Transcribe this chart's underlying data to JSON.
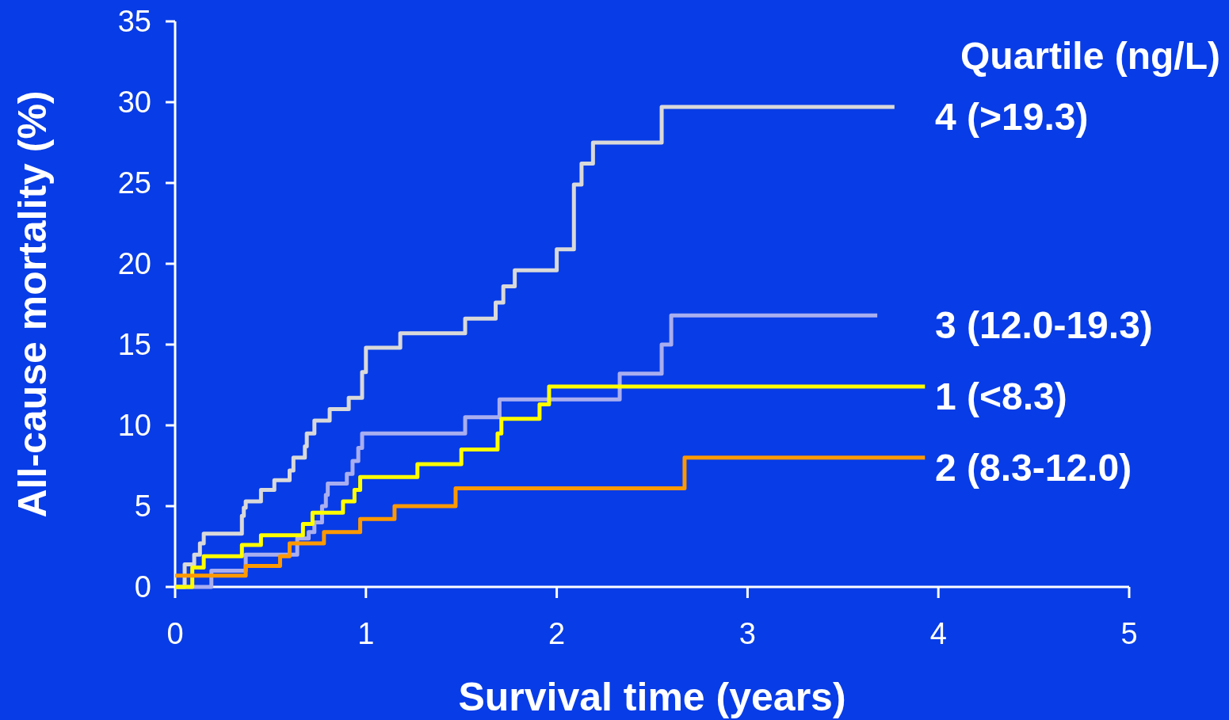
{
  "chart_data": {
    "type": "step",
    "xlabel": "Survival time (years)",
    "ylabel": "All-cause mortality (%)",
    "legend_title": "Quartile (ng/L)",
    "xlim": [
      0,
      5
    ],
    "ylim": [
      0,
      35
    ],
    "xticks": [
      0,
      1,
      2,
      3,
      4,
      5
    ],
    "yticks": [
      0,
      5,
      10,
      15,
      20,
      25,
      30,
      35
    ],
    "grid": false,
    "series": [
      {
        "name": "4 (>19.3)",
        "color": "#d9d9d9",
        "x": [
          0,
          0.05,
          0.1,
          0.13,
          0.15,
          0.35,
          0.36,
          0.37,
          0.45,
          0.52,
          0.6,
          0.62,
          0.68,
          0.69,
          0.73,
          0.81,
          0.91,
          0.98,
          1.0,
          1.18,
          1.52,
          1.68,
          1.72,
          1.78,
          2.0,
          2.09,
          2.13,
          2.19,
          2.55,
          3.77
        ],
        "values": [
          0,
          1.4,
          2,
          2.7,
          3.3,
          4.4,
          4.9,
          5.3,
          6,
          6.6,
          7.2,
          8,
          8.7,
          9.5,
          10.3,
          11,
          11.7,
          13.3,
          14.8,
          15.7,
          16.6,
          17.6,
          18.6,
          19.6,
          20.9,
          24.9,
          26.2,
          27.5,
          29.7,
          29.7
        ]
      },
      {
        "name": "3 (12.0-19.3)",
        "color": "#a9aef0",
        "x": [
          0,
          0.19,
          0.37,
          0.64,
          0.7,
          0.73,
          0.77,
          0.79,
          0.8,
          0.9,
          0.93,
          0.96,
          0.98,
          1.52,
          1.7,
          2.33,
          2.55,
          2.6,
          3.68
        ],
        "values": [
          0,
          1,
          2,
          3,
          3.4,
          4,
          5,
          5.7,
          6.4,
          7,
          7.8,
          8.6,
          9.5,
          10.5,
          11.6,
          13.2,
          15,
          16.8,
          16.8
        ]
      },
      {
        "name": "1 (<8.3)",
        "color": "#ffff00",
        "x": [
          0,
          0.09,
          0.15,
          0.35,
          0.45,
          0.67,
          0.72,
          0.88,
          0.94,
          0.97,
          1.27,
          1.5,
          1.69,
          1.71,
          1.91,
          1.96,
          3.93
        ],
        "values": [
          0,
          1.2,
          1.9,
          2.6,
          3.2,
          3.9,
          4.6,
          5.3,
          6,
          6.8,
          7.6,
          8.5,
          9.5,
          10.4,
          11.3,
          12.4,
          12.4
        ]
      },
      {
        "name": "2 (8.3-12.0)",
        "color": "#ff9900",
        "x": [
          0,
          0.37,
          0.55,
          0.6,
          0.78,
          0.97,
          1.15,
          1.47,
          2.67,
          3.93
        ],
        "values": [
          0.7,
          1.3,
          1.9,
          2.7,
          3.4,
          4.2,
          5,
          6.1,
          8,
          8
        ]
      }
    ]
  }
}
